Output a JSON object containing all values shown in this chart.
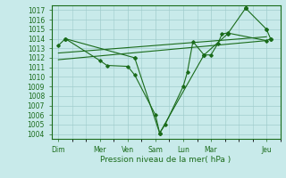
{
  "background_color": "#c8eaea",
  "grid_color": "#a0cccc",
  "line_color": "#1a6b1a",
  "title": "Pression niveau de la mer( hPa )",
  "ylabel_ticks": [
    1004,
    1005,
    1006,
    1007,
    1008,
    1009,
    1010,
    1011,
    1012,
    1013,
    1014,
    1015,
    1016,
    1017
  ],
  "ylim": [
    1003.5,
    1017.5
  ],
  "x_tick_labels": [
    "Dim",
    "Mer",
    "Ven",
    "",
    "Sam",
    "",
    "Lun",
    "",
    "Mar",
    "",
    "",
    "",
    "Jeu"
  ],
  "xlim": [
    -0.5,
    16
  ],
  "day_positions": {
    "Dim": 0,
    "Mer": 3,
    "Ven": 5,
    "Sam": 7,
    "Lun": 9,
    "Mar": 11,
    "Jeu": 15
  },
  "series1_x": [
    0,
    0.5,
    3,
    3.5,
    5,
    5.5,
    7,
    7.3,
    7.7,
    9,
    9.3,
    9.7,
    10.5,
    11,
    11.5,
    11.8,
    12.2,
    15,
    15.3
  ],
  "series1_y": [
    1013.3,
    1014.0,
    1011.7,
    1011.2,
    1011.1,
    1010.2,
    1006.0,
    1004.1,
    1005.0,
    1009.0,
    1010.5,
    1013.7,
    1012.3,
    1012.3,
    1013.5,
    1014.5,
    1014.6,
    1013.8,
    1014.0
  ],
  "series2_x": [
    0,
    15
  ],
  "series2_y": [
    1011.8,
    1013.8
  ],
  "series3_x": [
    0,
    15
  ],
  "series3_y": [
    1012.5,
    1014.2
  ],
  "series4_x": [
    0.5,
    5.5,
    7.3,
    10.5,
    12.2,
    13.5
  ],
  "series4_y": [
    1014.0,
    1012.0,
    1004.1,
    1012.3,
    1014.5,
    1017.2
  ],
  "series5_x": [
    13.5,
    15,
    15.3
  ],
  "series5_y": [
    1017.2,
    1015.0,
    1014.0
  ]
}
